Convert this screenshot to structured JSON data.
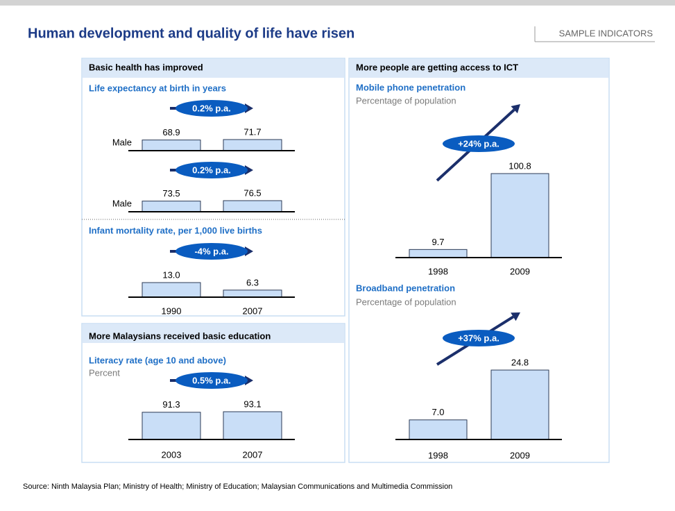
{
  "title": "Human development and quality of life have risen",
  "tag": "SAMPLE INDICATORS",
  "source": "Source: Ninth Malaysia Plan; Ministry of Health; Ministry of Education; Malaysian Communications and Multimedia Commission",
  "panels": [
    {
      "heading": "Basic health has improved"
    },
    {
      "heading": "More Malaysians received basic education"
    },
    {
      "heading": "More people are getting access to ICT"
    }
  ],
  "chart_data": [
    {
      "type": "bar",
      "title": "Life expectancy at birth in years",
      "label": "Male",
      "growth": "0.2% p.a.",
      "values": [
        68.9,
        71.7
      ],
      "color": "#c9def7"
    },
    {
      "type": "bar",
      "label": "Male",
      "growth": "0.2% p.a.",
      "values": [
        73.5,
        76.5
      ],
      "color": "#c9def7"
    },
    {
      "type": "bar",
      "title": "Infant mortality rate, per 1,000 live births",
      "growth": "-4% p.a.",
      "categories": [
        "1990",
        "2007"
      ],
      "values": [
        13.0,
        6.3
      ],
      "value_labels": [
        "13.0",
        "6.3"
      ],
      "color": "#c9def7"
    },
    {
      "type": "bar",
      "title": "Literacy rate (age 10 and above)",
      "subtitle": "Percent",
      "growth": "0.5% p.a.",
      "categories": [
        "2003",
        "2007"
      ],
      "values": [
        91.3,
        93.1
      ],
      "color": "#c9def7"
    },
    {
      "type": "bar",
      "title": "Mobile phone penetration",
      "subtitle": "Percentage of population",
      "growth": "+24% p.a.",
      "categories": [
        "1998",
        "2009"
      ],
      "values": [
        9.7,
        100.8
      ],
      "color": "#c9def7"
    },
    {
      "type": "bar",
      "title": "Broadband penetration",
      "subtitle": "Percentage of population",
      "growth": "+37% p.a.",
      "categories": [
        "1998",
        "2009"
      ],
      "values": [
        7.0,
        24.8
      ],
      "value_labels": [
        "7.0",
        "24.8"
      ],
      "color": "#c9def7"
    }
  ]
}
